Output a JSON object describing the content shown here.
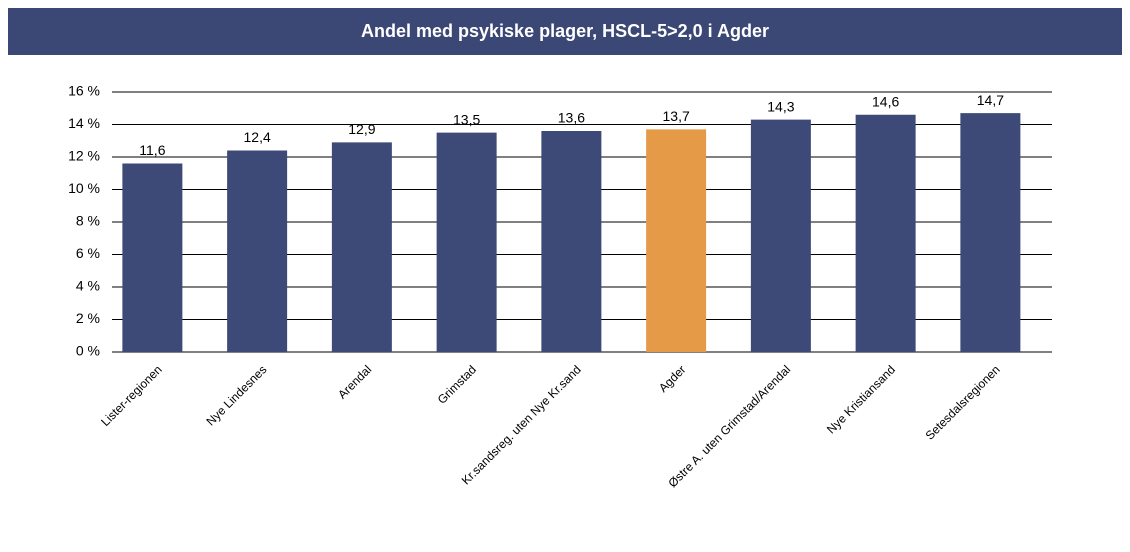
{
  "chart_data": {
    "type": "bar",
    "title": "Andel med psykiske plager, HSCL-5>2,0 i Agder",
    "categories": [
      "Lister-regionen",
      "Nye Lindesnes",
      "Arendal",
      "Grimstad",
      "Kr.sandsreg. uten Nye Kr.sand",
      "Agder",
      "Østre A. uten Grimstad/Arendal",
      "Nye Kristiansand",
      "Setesdalsregionen"
    ],
    "values": [
      11.6,
      12.4,
      12.9,
      13.5,
      13.6,
      13.7,
      14.3,
      14.6,
      14.7
    ],
    "value_labels": [
      "11,6",
      "12,4",
      "12,9",
      "13,5",
      "13,6",
      "13,7",
      "14,3",
      "14,6",
      "14,7"
    ],
    "colors": [
      "#3d4a78",
      "#3d4a78",
      "#3d4a78",
      "#3d4a78",
      "#3d4a78",
      "#e59a48",
      "#3d4a78",
      "#3d4a78",
      "#3d4a78"
    ],
    "ylim": [
      0,
      16
    ],
    "yticks": [
      {
        "value": 0,
        "label": "0 %"
      },
      {
        "value": 2,
        "label": "2 %"
      },
      {
        "value": 4,
        "label": "4 %"
      },
      {
        "value": 6,
        "label": "6 %"
      },
      {
        "value": 8,
        "label": "8 %"
      },
      {
        "value": 10,
        "label": "10 %"
      },
      {
        "value": 12,
        "label": "12 %"
      },
      {
        "value": 14,
        "label": "14 %"
      },
      {
        "value": 16,
        "label": "16 %"
      }
    ],
    "grid": true
  }
}
